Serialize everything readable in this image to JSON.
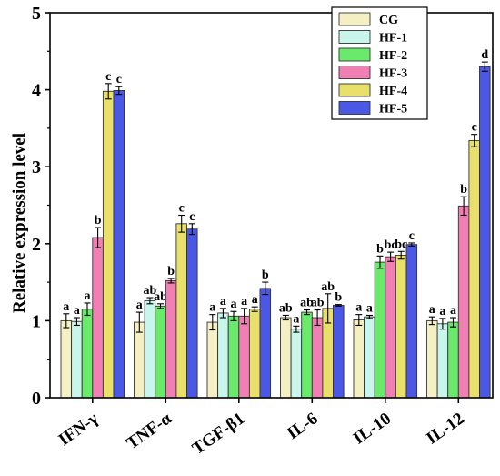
{
  "chart_data": {
    "type": "bar",
    "ylabel": "Relative expression level",
    "xlabel": "",
    "ylim": [
      0,
      5
    ],
    "yticks": [
      0,
      1,
      2,
      3,
      4,
      5
    ],
    "grid": false,
    "legend_position": "top-right",
    "categories": [
      "IFN-γ",
      "TNF-α",
      "TGF-β1",
      "IL-6",
      "IL-10",
      "IL-12"
    ],
    "series": [
      {
        "name": "CG",
        "color": "#f5f0c4",
        "values": [
          1.0,
          0.98,
          0.98,
          1.04,
          1.01,
          1.0
        ],
        "errors": [
          0.09,
          0.13,
          0.1,
          0.03,
          0.07,
          0.05
        ],
        "labels": [
          "a",
          "a",
          "a",
          "ab",
          "a",
          "a"
        ]
      },
      {
        "name": "HF-1",
        "color": "#c8f5ec",
        "values": [
          0.99,
          1.26,
          1.1,
          0.89,
          1.05,
          0.96
        ],
        "errors": [
          0.05,
          0.04,
          0.06,
          0.04,
          0.02,
          0.07
        ],
        "labels": [
          "a",
          "ab",
          "a",
          "a",
          "a",
          "a"
        ]
      },
      {
        "name": "HF-2",
        "color": "#6aea6a",
        "values": [
          1.15,
          1.19,
          1.06,
          1.11,
          1.76,
          0.98
        ],
        "errors": [
          0.08,
          0.03,
          0.06,
          0.03,
          0.08,
          0.06
        ],
        "labels": [
          "a",
          "ab",
          "a",
          "ab",
          "b",
          "a"
        ]
      },
      {
        "name": "HF-3",
        "color": "#f07fb4",
        "values": [
          2.08,
          1.52,
          1.06,
          1.04,
          1.83,
          2.49
        ],
        "errors": [
          0.13,
          0.03,
          0.1,
          0.1,
          0.06,
          0.12
        ],
        "labels": [
          "b",
          "b",
          "a",
          "ab",
          "bc",
          "b"
        ]
      },
      {
        "name": "HF-4",
        "color": "#e8e06a",
        "values": [
          3.98,
          2.26,
          1.15,
          1.16,
          1.85,
          3.34
        ],
        "errors": [
          0.1,
          0.11,
          0.03,
          0.19,
          0.05,
          0.08
        ],
        "labels": [
          "c",
          "c",
          "a",
          "ab",
          "bc",
          "c"
        ]
      },
      {
        "name": "HF-5",
        "color": "#4b58e6",
        "values": [
          3.99,
          2.19,
          1.42,
          1.2,
          1.99,
          4.3
        ],
        "errors": [
          0.05,
          0.07,
          0.08,
          0.01,
          0.02,
          0.06
        ],
        "labels": [
          "c",
          "c",
          "b",
          "b",
          "c",
          "d"
        ]
      }
    ]
  }
}
